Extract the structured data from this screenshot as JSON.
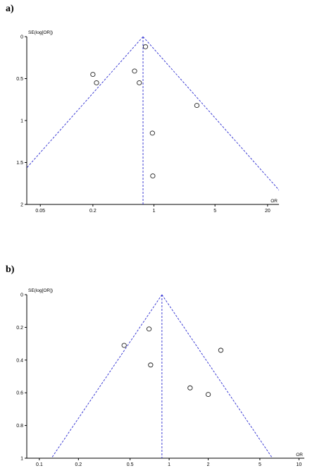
{
  "chart_data": [
    {
      "type": "scatter",
      "panel_label": "a)",
      "xlabel": "OR",
      "ylabel": "SE(log[OR])",
      "x_scale": "log",
      "y_inverted": true,
      "xlim": [
        0.035,
        27
      ],
      "ylim": [
        0,
        2
      ],
      "x_ticks": [
        0.05,
        0.2,
        1,
        5,
        20
      ],
      "x_tick_labels": [
        "0.05",
        "0.2",
        "1",
        "5",
        "20"
      ],
      "y_ticks": [
        0,
        0.5,
        1,
        1.5,
        2
      ],
      "y_tick_labels": [
        "0",
        "0.5",
        "1",
        "1.5",
        "2"
      ],
      "pooled_or": 0.75,
      "funnel_color": "#2b2bd0",
      "points": [
        {
          "or": 0.8,
          "se": 0.12
        },
        {
          "or": 0.2,
          "se": 0.45
        },
        {
          "or": 0.22,
          "se": 0.55
        },
        {
          "or": 0.6,
          "se": 0.41
        },
        {
          "or": 0.68,
          "se": 0.55
        },
        {
          "or": 3.1,
          "se": 0.82
        },
        {
          "or": 0.96,
          "se": 1.15
        },
        {
          "or": 0.97,
          "se": 1.66
        }
      ]
    },
    {
      "type": "scatter",
      "panel_label": "b)",
      "xlabel": "OR",
      "ylabel": "SE(log[OR])",
      "x_scale": "log",
      "y_inverted": true,
      "xlim": [
        0.08,
        11
      ],
      "ylim": [
        0,
        1
      ],
      "x_ticks": [
        0.1,
        0.2,
        0.5,
        1,
        2,
        5,
        10
      ],
      "x_tick_labels": [
        "0.1",
        "0.2",
        "0.5",
        "1",
        "2",
        "5",
        "10"
      ],
      "y_ticks": [
        0,
        0.2,
        0.4,
        0.6,
        0.8,
        1
      ],
      "y_tick_labels": [
        "0",
        "0.2",
        "0.4",
        "0.6",
        "0.8",
        "1"
      ],
      "pooled_or": 0.88,
      "funnel_color": "#2b2bd0",
      "points": [
        {
          "or": 0.45,
          "se": 0.31
        },
        {
          "or": 0.7,
          "se": 0.21
        },
        {
          "or": 0.72,
          "se": 0.43
        },
        {
          "or": 1.45,
          "se": 0.57
        },
        {
          "or": 2.0,
          "se": 0.61
        },
        {
          "or": 2.5,
          "se": 0.34
        }
      ]
    }
  ]
}
